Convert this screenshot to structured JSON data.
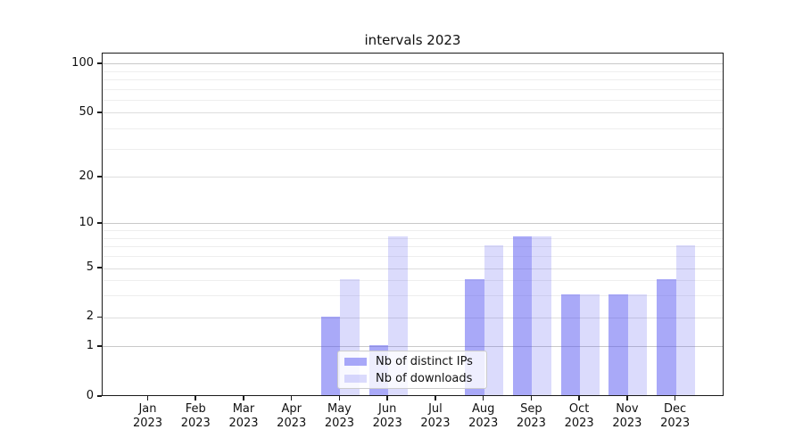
{
  "title": "intervals 2023",
  "legend": {
    "position": "lower center",
    "items": [
      {
        "label": "Nb of distinct IPs",
        "color": "rgba(84,84,241,0.5)"
      },
      {
        "label": "Nb of downloads",
        "color": "rgba(84,84,241,0.21)"
      }
    ]
  },
  "chart_data": {
    "type": "bar",
    "title": "intervals 2023",
    "xlabel": "",
    "ylabel": "",
    "categories": [
      "Jan 2023",
      "Feb 2023",
      "Mar 2023",
      "Apr 2023",
      "May 2023",
      "Jun 2023",
      "Jul 2023",
      "Aug 2023",
      "Sep 2023",
      "Oct 2023",
      "Nov 2023",
      "Dec 2023"
    ],
    "x_tick_months": [
      "Jan",
      "Feb",
      "Mar",
      "Apr",
      "May",
      "Jun",
      "Jul",
      "Aug",
      "Sep",
      "Oct",
      "Nov",
      "Dec"
    ],
    "x_tick_year": "2023",
    "series": [
      {
        "name": "Nb of distinct IPs",
        "color": "rgba(84,84,241,0.5)",
        "values": [
          0,
          0,
          0,
          0,
          2,
          1,
          0,
          4,
          8,
          3,
          3,
          4
        ]
      },
      {
        "name": "Nb of downloads",
        "color": "rgba(84,84,241,0.21)",
        "values": [
          0,
          0,
          0,
          0,
          4,
          8,
          0,
          7,
          8,
          3,
          3,
          7
        ]
      }
    ],
    "y_scale": "symlog-like",
    "ylim": [
      0,
      115
    ],
    "y_ticks": [
      0,
      1,
      2,
      5,
      10,
      20,
      50,
      100
    ],
    "y_minor_gridlines": [
      3,
      4,
      6,
      7,
      8,
      9,
      30,
      40,
      60,
      70,
      80,
      90
    ],
    "y_anchor_fractions": [
      [
        0,
        0
      ],
      [
        1,
        0.1455
      ],
      [
        2,
        0.2299
      ],
      [
        5,
        0.374
      ],
      [
        10,
        0.5039
      ],
      [
        20,
        0.639
      ],
      [
        50,
        0.826
      ],
      [
        100,
        0.969
      ]
    ],
    "grid": true,
    "grid_colors": {
      "power_of_ten": "#c9c9c9",
      "labeled": "#dedede",
      "minor": "#eeeeee"
    },
    "legend_position": "lower center inside"
  }
}
